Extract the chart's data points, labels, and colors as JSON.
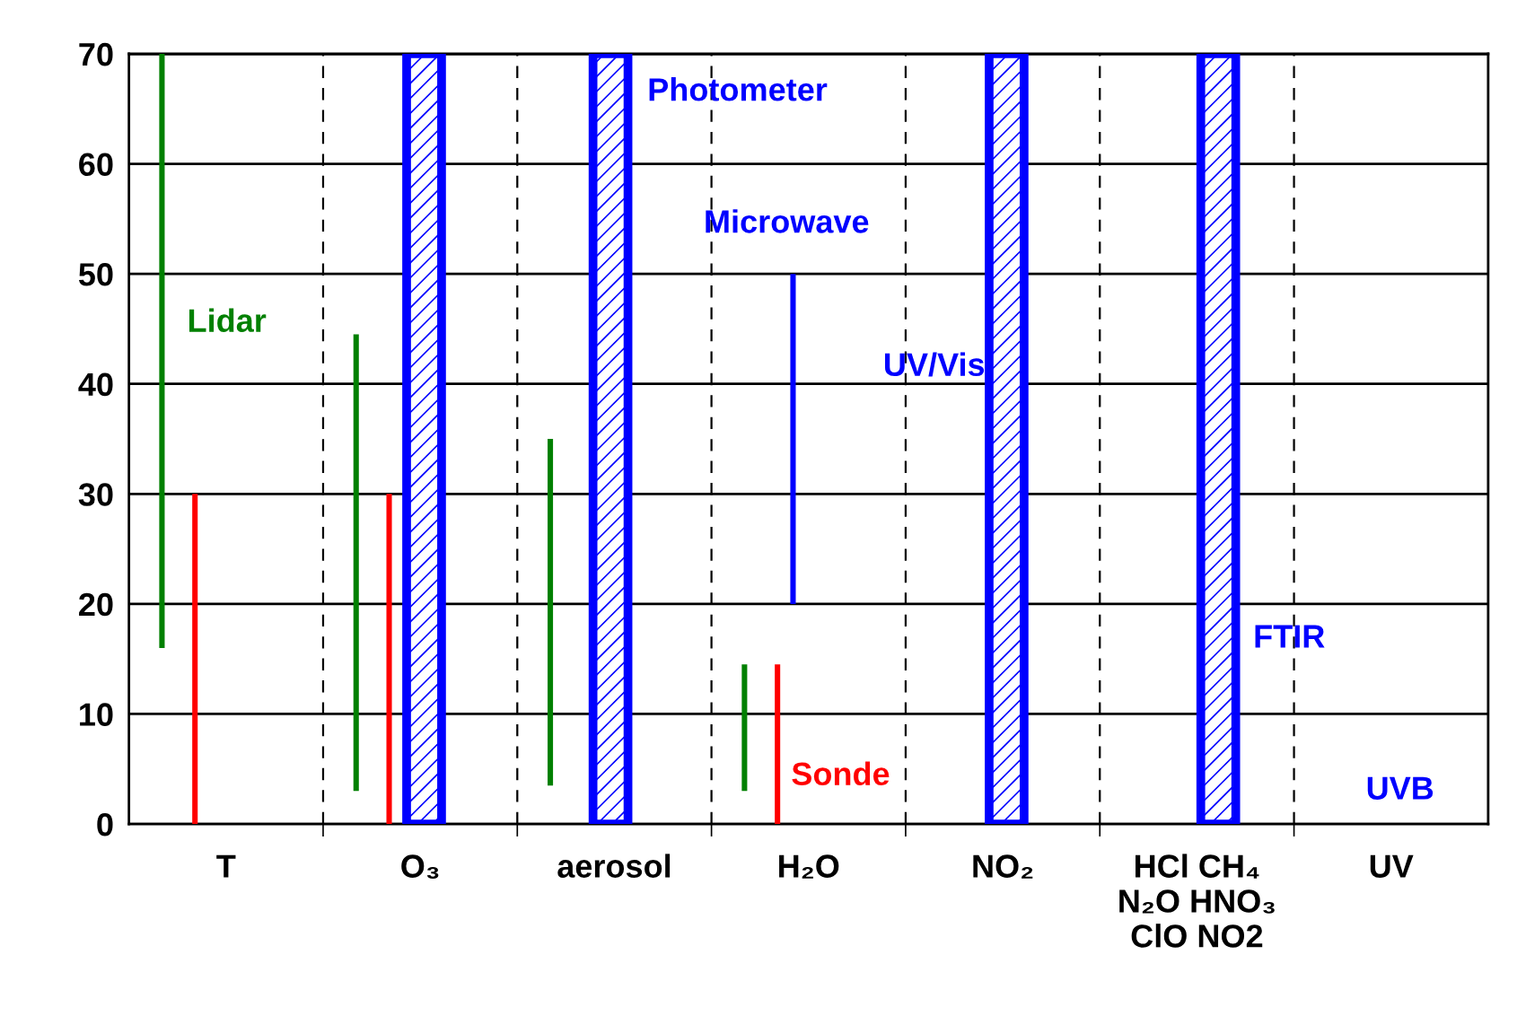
{
  "chart_data": {
    "type": "bar",
    "categories": [
      "T",
      "O₃",
      "aerosol",
      "H₂O",
      "NO₂",
      "HCl CH₄\nN₂O HNO₃\nClO NO2",
      "UV"
    ],
    "series": [
      {
        "name": "Lidar",
        "color": "#008000",
        "base": [
          16,
          3,
          3.5,
          3,
          null,
          null,
          null
        ],
        "values": [
          54,
          41.5,
          31.5,
          11.5,
          null,
          null,
          null
        ]
      },
      {
        "name": "Sonde",
        "color": "#ff0000",
        "base": [
          0,
          0,
          null,
          0,
          null,
          null,
          null
        ],
        "values": [
          30,
          30,
          null,
          14.5,
          null,
          null,
          null
        ]
      },
      {
        "name": "Microwave",
        "color": "#0000ff",
        "base": [
          null,
          null,
          null,
          20,
          null,
          null,
          null
        ],
        "values": [
          null,
          null,
          null,
          30,
          null,
          null,
          null
        ]
      },
      {
        "name": "Photometer",
        "color": "#0000ff",
        "base": [
          null,
          null,
          0,
          null,
          null,
          null,
          null
        ],
        "values": [
          null,
          null,
          70,
          null,
          null,
          null,
          null
        ]
      },
      {
        "name": "UV/Vis",
        "color": "#0000ff",
        "base": [
          null,
          0,
          null,
          null,
          0,
          null,
          null
        ],
        "values": [
          null,
          70,
          null,
          null,
          70,
          null,
          null
        ]
      },
      {
        "name": "FTIR",
        "color": "#0000ff",
        "base": [
          null,
          null,
          null,
          null,
          null,
          0,
          null
        ],
        "values": [
          null,
          null,
          null,
          null,
          null,
          70,
          null
        ]
      },
      {
        "name": "UVB",
        "color": "#0000ff",
        "base": [
          null,
          null,
          null,
          null,
          null,
          null,
          null
        ],
        "values": [
          null,
          null,
          null,
          null,
          null,
          null,
          null
        ]
      }
    ],
    "ylim": [
      0,
      70
    ],
    "yticks": [
      0,
      10,
      20,
      30,
      40,
      50,
      60,
      70
    ],
    "grid": true,
    "legend": false
  }
}
